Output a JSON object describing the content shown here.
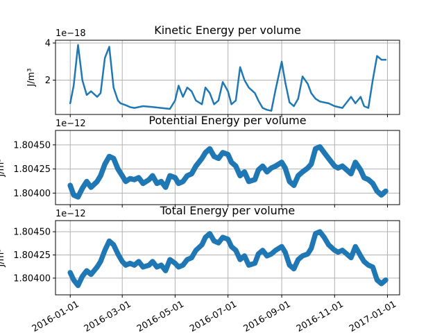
{
  "chart_data": [
    {
      "type": "line",
      "title": "Kinetic Energy per volume",
      "ylabel": "J/m³",
      "offset_text": "1e−18",
      "unit_scale": "1e-18",
      "ylim": [
        0.15,
        4.15
      ],
      "yticks": [
        {
          "value": 2,
          "label": "2"
        },
        {
          "value": 4,
          "label": "4"
        }
      ],
      "band": 0.09,
      "color": "#1f77b4",
      "grid": true,
      "x": [
        "2016-01-01",
        "2016-01-05",
        "2016-01-10",
        "2016-01-15",
        "2016-01-20",
        "2016-01-25",
        "2016-02-01",
        "2016-02-05",
        "2016-02-10",
        "2016-02-15",
        "2016-02-20",
        "2016-02-25",
        "2016-02-28",
        "2016-03-05",
        "2016-03-10",
        "2016-03-15",
        "2016-03-25",
        "2016-04-05",
        "2016-04-15",
        "2016-04-25",
        "2016-05-01",
        "2016-05-05",
        "2016-05-10",
        "2016-05-15",
        "2016-05-20",
        "2016-05-25",
        "2016-06-01",
        "2016-06-05",
        "2016-06-10",
        "2016-06-15",
        "2016-06-20",
        "2016-06-25",
        "2016-07-01",
        "2016-07-05",
        "2016-07-10",
        "2016-07-15",
        "2016-07-20",
        "2016-07-25",
        "2016-08-01",
        "2016-08-05",
        "2016-08-10",
        "2016-08-15",
        "2016-08-20",
        "2016-08-25",
        "2016-09-01",
        "2016-09-05",
        "2016-09-10",
        "2016-09-15",
        "2016-09-20",
        "2016-09-25",
        "2016-10-01",
        "2016-10-05",
        "2016-10-10",
        "2016-10-15",
        "2016-10-20",
        "2016-10-25",
        "2016-11-01",
        "2016-11-10",
        "2016-11-20",
        "2016-11-25",
        "2016-12-01",
        "2016-12-05",
        "2016-12-10",
        "2016-12-15",
        "2016-12-20",
        "2016-12-25",
        "2016-12-30"
      ],
      "y": [
        0.75,
        1.7,
        3.9,
        2.0,
        1.2,
        1.4,
        1.1,
        1.3,
        3.2,
        3.8,
        1.6,
        0.9,
        0.75,
        0.65,
        0.55,
        0.5,
        0.6,
        0.55,
        0.5,
        0.45,
        0.9,
        1.7,
        1.1,
        1.6,
        1.4,
        0.9,
        0.7,
        1.6,
        1.3,
        0.7,
        0.9,
        1.9,
        1.4,
        0.7,
        0.9,
        2.7,
        2.0,
        1.6,
        1.3,
        0.9,
        0.5,
        0.4,
        0.35,
        1.5,
        3.0,
        1.9,
        0.8,
        0.6,
        1.0,
        2.2,
        1.8,
        1.3,
        1.0,
        0.85,
        0.8,
        0.75,
        0.6,
        0.5,
        1.1,
        0.75,
        1.1,
        0.6,
        0.5,
        2.0,
        3.3,
        3.1,
        3.1
      ]
    },
    {
      "type": "line",
      "title": "Potential Energy per volume",
      "ylabel": "J/m³",
      "offset_text": "1e−12",
      "unit_scale": "1e-12",
      "ylim": [
        1.80388,
        1.80465
      ],
      "yticks": [
        {
          "value": 1.804,
          "label": "1.80400"
        },
        {
          "value": 1.80425,
          "label": "1.80425"
        },
        {
          "value": 1.8045,
          "label": "1.80450"
        }
      ],
      "band": 5.5e-05,
      "color": "#1f77b4",
      "grid": true,
      "x": [
        "2016-01-01",
        "2016-01-05",
        "2016-01-10",
        "2016-01-15",
        "2016-01-20",
        "2016-01-25",
        "2016-02-01",
        "2016-02-05",
        "2016-02-10",
        "2016-02-15",
        "2016-02-20",
        "2016-02-25",
        "2016-03-01",
        "2016-03-05",
        "2016-03-10",
        "2016-03-15",
        "2016-03-20",
        "2016-03-25",
        "2016-04-01",
        "2016-04-05",
        "2016-04-10",
        "2016-04-15",
        "2016-04-20",
        "2016-04-25",
        "2016-05-01",
        "2016-05-05",
        "2016-05-10",
        "2016-05-15",
        "2016-05-20",
        "2016-05-25",
        "2016-06-01",
        "2016-06-05",
        "2016-06-10",
        "2016-06-15",
        "2016-06-20",
        "2016-06-25",
        "2016-07-01",
        "2016-07-05",
        "2016-07-10",
        "2016-07-15",
        "2016-07-20",
        "2016-07-25",
        "2016-08-01",
        "2016-08-05",
        "2016-08-10",
        "2016-08-15",
        "2016-08-20",
        "2016-08-25",
        "2016-09-01",
        "2016-09-05",
        "2016-09-10",
        "2016-09-15",
        "2016-09-20",
        "2016-09-25",
        "2016-10-01",
        "2016-10-05",
        "2016-10-10",
        "2016-10-15",
        "2016-10-20",
        "2016-10-25",
        "2016-11-01",
        "2016-11-05",
        "2016-11-10",
        "2016-11-15",
        "2016-11-20",
        "2016-11-25",
        "2016-12-01",
        "2016-12-05",
        "2016-12-10",
        "2016-12-15",
        "2016-12-20",
        "2016-12-25",
        "2016-12-30"
      ],
      "y": [
        1.80408,
        1.80398,
        1.80396,
        1.80405,
        1.80412,
        1.80406,
        1.80412,
        1.80418,
        1.8043,
        1.80438,
        1.80436,
        1.80425,
        1.80418,
        1.80412,
        1.80415,
        1.80414,
        1.80416,
        1.8041,
        1.80414,
        1.80418,
        1.8041,
        1.80412,
        1.80406,
        1.80418,
        1.80416,
        1.8041,
        1.80412,
        1.80418,
        1.8042,
        1.80428,
        1.80436,
        1.80442,
        1.80446,
        1.80438,
        1.80436,
        1.80442,
        1.8044,
        1.80432,
        1.80428,
        1.80418,
        1.80422,
        1.80412,
        1.80414,
        1.80424,
        1.80428,
        1.80422,
        1.80426,
        1.80428,
        1.80432,
        1.80426,
        1.80412,
        1.80408,
        1.80418,
        1.80422,
        1.80426,
        1.8043,
        1.80446,
        1.80448,
        1.80442,
        1.80436,
        1.80428,
        1.80426,
        1.80428,
        1.80424,
        1.8042,
        1.80432,
        1.80424,
        1.80416,
        1.80414,
        1.8041,
        1.80402,
        1.80398,
        1.80402
      ]
    },
    {
      "type": "line",
      "title": "Total Energy per volume",
      "ylabel": "J/m³",
      "offset_text": "1e−12",
      "unit_scale": "1e-12",
      "ylim": [
        1.80382,
        1.80462
      ],
      "yticks": [
        {
          "value": 1.804,
          "label": "1.80400"
        },
        {
          "value": 1.80425,
          "label": "1.80425"
        },
        {
          "value": 1.8045,
          "label": "1.80450"
        }
      ],
      "band": 5.5e-05,
      "color": "#1f77b4",
      "grid": true,
      "x": [
        "2016-01-01",
        "2016-01-05",
        "2016-01-10",
        "2016-01-15",
        "2016-01-20",
        "2016-01-25",
        "2016-02-01",
        "2016-02-05",
        "2016-02-10",
        "2016-02-15",
        "2016-02-20",
        "2016-02-25",
        "2016-03-01",
        "2016-03-05",
        "2016-03-10",
        "2016-03-15",
        "2016-03-20",
        "2016-03-25",
        "2016-04-01",
        "2016-04-05",
        "2016-04-10",
        "2016-04-15",
        "2016-04-20",
        "2016-04-25",
        "2016-05-01",
        "2016-05-05",
        "2016-05-10",
        "2016-05-15",
        "2016-05-20",
        "2016-05-25",
        "2016-06-01",
        "2016-06-05",
        "2016-06-10",
        "2016-06-15",
        "2016-06-20",
        "2016-06-25",
        "2016-07-01",
        "2016-07-05",
        "2016-07-10",
        "2016-07-15",
        "2016-07-20",
        "2016-07-25",
        "2016-08-01",
        "2016-08-05",
        "2016-08-10",
        "2016-08-15",
        "2016-08-20",
        "2016-08-25",
        "2016-09-01",
        "2016-09-05",
        "2016-09-10",
        "2016-09-15",
        "2016-09-20",
        "2016-09-25",
        "2016-10-01",
        "2016-10-05",
        "2016-10-10",
        "2016-10-15",
        "2016-10-20",
        "2016-10-25",
        "2016-11-01",
        "2016-11-05",
        "2016-11-10",
        "2016-11-15",
        "2016-11-20",
        "2016-11-25",
        "2016-12-01",
        "2016-12-05",
        "2016-12-10",
        "2016-12-15",
        "2016-12-20",
        "2016-12-25",
        "2016-12-30"
      ],
      "y": [
        1.80406,
        1.80398,
        1.80392,
        1.80402,
        1.80408,
        1.80404,
        1.80412,
        1.80418,
        1.8043,
        1.8044,
        1.80436,
        1.80426,
        1.80418,
        1.80414,
        1.80416,
        1.80414,
        1.80418,
        1.80412,
        1.80414,
        1.80418,
        1.80412,
        1.80414,
        1.80408,
        1.8042,
        1.80416,
        1.80412,
        1.80414,
        1.8042,
        1.80422,
        1.8043,
        1.80436,
        1.80444,
        1.80448,
        1.8044,
        1.80438,
        1.80444,
        1.80442,
        1.80434,
        1.8043,
        1.8042,
        1.80424,
        1.80414,
        1.80416,
        1.80426,
        1.8043,
        1.80424,
        1.80426,
        1.8043,
        1.80434,
        1.80428,
        1.80414,
        1.8041,
        1.8042,
        1.80424,
        1.80426,
        1.80432,
        1.80448,
        1.8045,
        1.80444,
        1.80436,
        1.8043,
        1.80428,
        1.8043,
        1.80426,
        1.80422,
        1.80434,
        1.80424,
        1.80418,
        1.80414,
        1.80412,
        1.80398,
        1.80394,
        1.80398
      ]
    }
  ],
  "xaxis": {
    "xlim": [
      "2015-12-15",
      "2017-01-15"
    ],
    "ticks": [
      {
        "date": "2016-01-01",
        "label": "2016-01-01"
      },
      {
        "date": "2016-03-01",
        "label": "2016-03-01"
      },
      {
        "date": "2016-05-01",
        "label": "2016-05-01"
      },
      {
        "date": "2016-07-01",
        "label": "2016-07-01"
      },
      {
        "date": "2016-09-01",
        "label": "2016-09-01"
      },
      {
        "date": "2016-11-01",
        "label": "2016-11-01"
      },
      {
        "date": "2017-01-01",
        "label": "2017-01-01"
      }
    ],
    "label_rotation": -30
  }
}
